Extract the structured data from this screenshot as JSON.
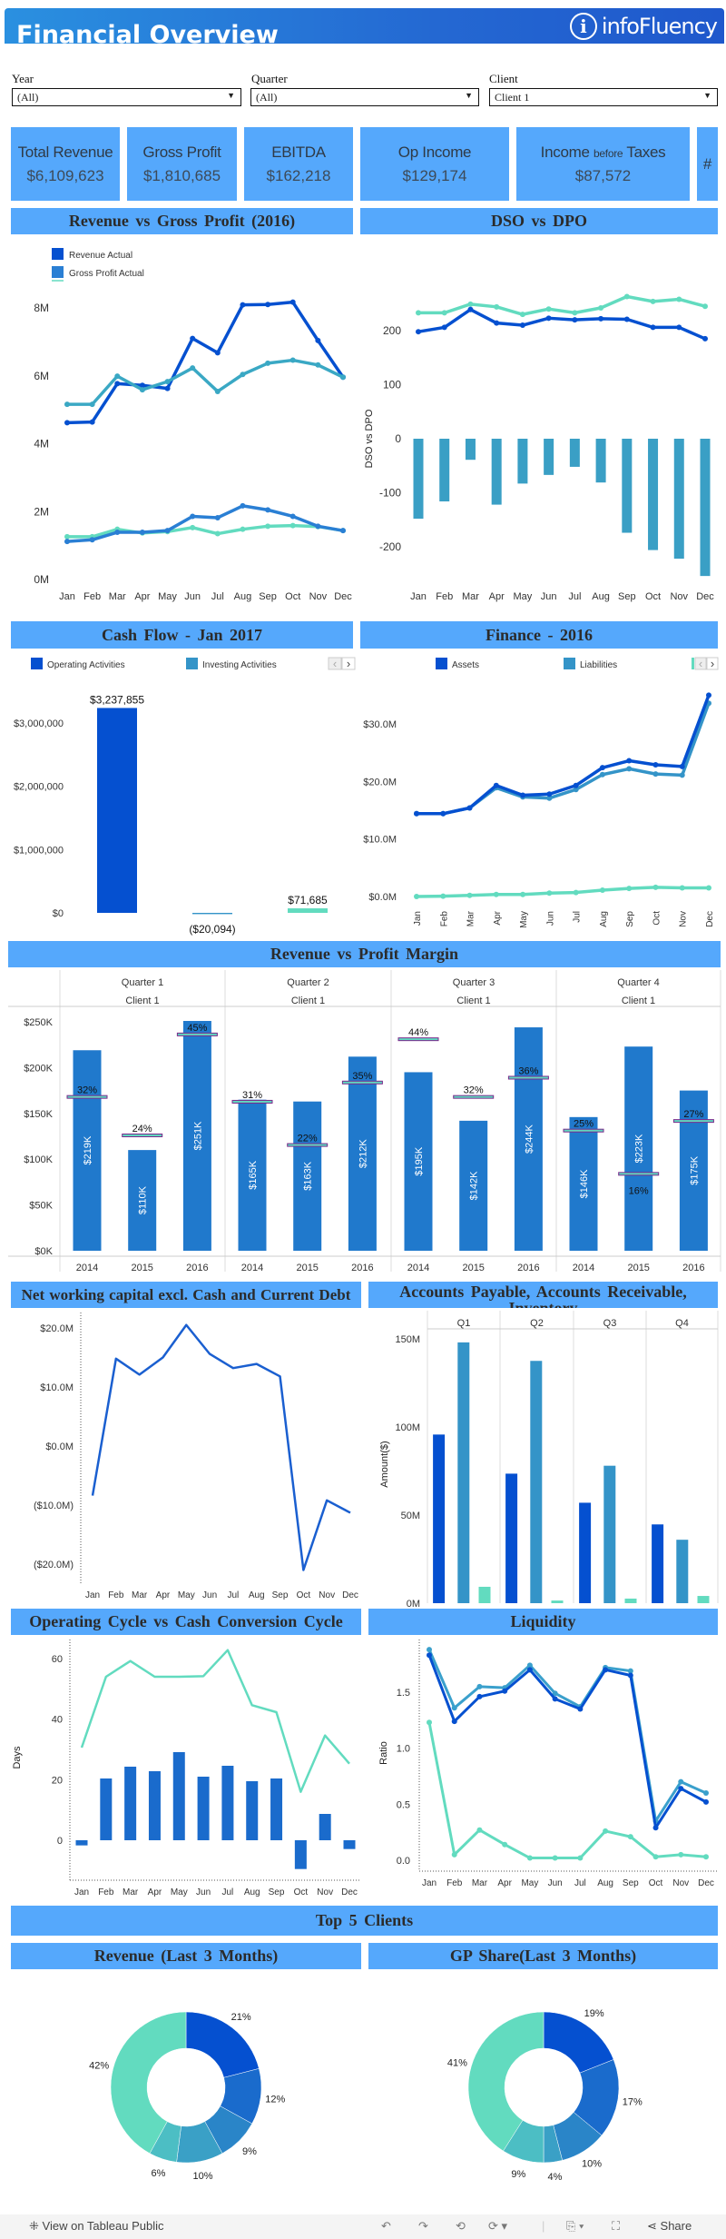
{
  "header": {
    "title": "Financial Overview",
    "logo_text": "infoFluency",
    "logo_mark": "i"
  },
  "filters": [
    {
      "label": "Year",
      "value": "(All)"
    },
    {
      "label": "Quarter",
      "value": "(All)"
    },
    {
      "label": "Client",
      "value": "Client 1"
    }
  ],
  "kpis": [
    {
      "label": "Total Revenue",
      "value": "$6,109,623"
    },
    {
      "label": "Gross Profit",
      "value": "$1,810,685"
    },
    {
      "label": "EBITDA",
      "value": "$162,218"
    },
    {
      "label": "Op Income",
      "value": "$129,174"
    },
    {
      "label_pre": "Income ",
      "label_small": "before",
      "label_post": " Taxes",
      "value": "$87,572"
    },
    {
      "label": "#"
    }
  ],
  "sections": {
    "revenue_vs_gp": "Revenue vs Gross Profit (2016)",
    "dso_vs_dpo": "DSO vs DPO",
    "cash_flow": "Cash Flow - Jan 2017",
    "finance": "Finance - 2016",
    "revenue_vs_margin": "Revenue vs Profit Margin",
    "nwc": "Net working capital excl. Cash and Current Debt",
    "ap_ar_inv": "Accounts Payable, Accounts Receivable, Inventory",
    "op_cycle": "Operating Cycle vs Cash Conversion Cycle",
    "liquidity": "Liquidity",
    "top5": "Top 5 Clients",
    "rev_3m": "Revenue (Last 3 Months)",
    "gp_3m": "GP Share(Last 3 Months)"
  },
  "colors": {
    "header_bg": "#55a8fc",
    "dark_blue": "#0550d0",
    "mid_blue": "#3494c8",
    "blue": "#2a7fd4",
    "teal": "#62dbbf",
    "teal_blue": "#3aa8c4",
    "margin_marker": "#7b2a8c"
  },
  "chart_data": [
    {
      "id": "revenue_vs_gp",
      "type": "line",
      "categories": [
        "Jan",
        "Feb",
        "Mar",
        "Apr",
        "May",
        "Jun",
        "Jul",
        "Aug",
        "Sep",
        "Oct",
        "Nov",
        "Dec"
      ],
      "legend": [
        {
          "name": "Revenue Actual",
          "color": "#0550d0"
        },
        {
          "name": "Gross Profit Actual",
          "color": "#2a7fd4"
        }
      ],
      "yticks": [
        {
          "value": 0,
          "label": "0M"
        },
        {
          "value": 2,
          "label": "2M"
        },
        {
          "value": 4,
          "label": "4M"
        },
        {
          "value": 6,
          "label": "6M"
        },
        {
          "value": 8,
          "label": "8M"
        }
      ],
      "series": [
        {
          "color": "#0550d0",
          "values": [
            4.62,
            4.64,
            5.77,
            5.72,
            5.63,
            7.1,
            6.68,
            8.09,
            8.1,
            8.17,
            7.04,
            5.96
          ]
        },
        {
          "color": "#3aa8c4",
          "values": [
            5.16,
            5.16,
            5.99,
            5.59,
            5.83,
            6.23,
            5.54,
            6.04,
            6.37,
            6.46,
            6.32,
            5.96
          ]
        },
        {
          "color": "#62dbbf",
          "values": [
            1.26,
            1.26,
            1.48,
            1.37,
            1.41,
            1.53,
            1.35,
            1.48,
            1.57,
            1.59,
            1.56,
            1.44
          ]
        },
        {
          "color": "#2a7fd4",
          "values": [
            1.12,
            1.17,
            1.39,
            1.39,
            1.44,
            1.86,
            1.82,
            2.17,
            2.05,
            1.86,
            1.57,
            1.44
          ]
        }
      ]
    },
    {
      "id": "dso_vs_dpo",
      "type": "combo",
      "categories": [
        "Jan",
        "Feb",
        "Mar",
        "Apr",
        "May",
        "Jun",
        "Jul",
        "Aug",
        "Sep",
        "Oct",
        "Nov",
        "Dec"
      ],
      "ylabel": "DSO vs DPO",
      "yticks": [
        {
          "value": -200,
          "label": "-200"
        },
        {
          "value": -100,
          "label": "-100"
        },
        {
          "value": 0,
          "label": "0"
        },
        {
          "value": 100,
          "label": "100"
        },
        {
          "value": 200,
          "label": "200"
        }
      ],
      "lines": [
        {
          "color": "#62dbbf",
          "values": [
            233,
            233,
            249,
            244,
            230,
            240,
            233,
            242,
            263,
            254,
            258,
            245
          ]
        },
        {
          "color": "#0550d0",
          "values": [
            198,
            206,
            239,
            214,
            210,
            223,
            220,
            222,
            221,
            206,
            206,
            185
          ]
        }
      ],
      "bars": {
        "color": "#3a9fc5",
        "values": [
          -148,
          -116,
          -39,
          -122,
          -83,
          -67,
          -52,
          -81,
          -174,
          -206,
          -222,
          -254
        ]
      }
    },
    {
      "id": "cash_flow",
      "type": "bar",
      "legend": [
        {
          "name": "Operating Activities",
          "color": "#0550d0"
        },
        {
          "name": "Investing Activities",
          "color": "#3494c8"
        }
      ],
      "values": [
        3237855,
        -20094,
        71685
      ],
      "colors": [
        "#0550d0",
        "#3494c8",
        "#62dbbf"
      ],
      "data_labels": [
        "$3,237,855",
        "($20,094)",
        "$71,685"
      ],
      "yticks": [
        {
          "value": 0,
          "label": "$0"
        },
        {
          "value": 1000000,
          "label": "$1,000,000"
        },
        {
          "value": 2000000,
          "label": "$2,000,000"
        },
        {
          "value": 3000000,
          "label": "$3,000,000"
        }
      ]
    },
    {
      "id": "finance",
      "type": "line",
      "categories": [
        "Jan",
        "Feb",
        "Mar",
        "Apr",
        "May",
        "Jun",
        "Jul",
        "Aug",
        "Sep",
        "Oct",
        "Nov",
        "Dec"
      ],
      "legend": [
        {
          "name": "Assets",
          "color": "#0550d0"
        },
        {
          "name": "Liabilities",
          "color": "#3494c8"
        }
      ],
      "yticks": [
        {
          "value": 0,
          "label": "$0.0M"
        },
        {
          "value": 10,
          "label": "$10.0M"
        },
        {
          "value": 20,
          "label": "$20.0M"
        },
        {
          "value": 30,
          "label": "$30.0M"
        }
      ],
      "series": [
        {
          "name": "Liabilities",
          "color": "#3494c8",
          "values": [
            14.4,
            14.4,
            15.4,
            18.9,
            17.3,
            17.1,
            18.6,
            21.2,
            22.2,
            21.3,
            21.1,
            33.6
          ]
        },
        {
          "name": "Assets",
          "color": "#0550d0",
          "values": [
            14.4,
            14.4,
            15.4,
            19.3,
            17.6,
            17.8,
            19.3,
            22.4,
            23.6,
            22.9,
            22.6,
            35.0
          ]
        },
        {
          "color": "#62dbbf",
          "values": [
            0.0,
            0.05,
            0.2,
            0.35,
            0.35,
            0.6,
            0.7,
            1.1,
            1.4,
            1.6,
            1.5,
            1.5
          ]
        }
      ]
    },
    {
      "id": "revenue_vs_margin",
      "type": "bar",
      "bar_color": "#2079cc",
      "yticks": [
        {
          "value": 0,
          "label": "$0K"
        },
        {
          "value": 50,
          "label": "$50K"
        },
        {
          "value": 100,
          "label": "$100K"
        },
        {
          "value": 150,
          "label": "$150K"
        },
        {
          "value": 200,
          "label": "$200K"
        },
        {
          "value": 250,
          "label": "$250K"
        }
      ],
      "panels": [
        {
          "quarter": "Quarter 1",
          "client": "Client 1",
          "years": [
            "2014",
            "2015",
            "2016"
          ],
          "revenue_k": [
            219,
            110,
            251
          ],
          "revenue_labels": [
            "$219K",
            "$110K",
            "$251K"
          ],
          "margin_pct": [
            32,
            24,
            45
          ],
          "margin_labels": [
            "32%",
            "24%",
            "45%"
          ]
        },
        {
          "quarter": "Quarter 2",
          "client": "Client 1",
          "years": [
            "2014",
            "2015",
            "2016"
          ],
          "revenue_k": [
            165,
            163,
            212
          ],
          "revenue_labels": [
            "$165K",
            "$163K",
            "$212K"
          ],
          "margin_pct": [
            31,
            22,
            35
          ],
          "margin_labels": [
            "31%",
            "22%",
            "35%"
          ]
        },
        {
          "quarter": "Quarter 3",
          "client": "Client 1",
          "years": [
            "2014",
            "2015",
            "2016"
          ],
          "revenue_k": [
            195,
            142,
            244
          ],
          "revenue_labels": [
            "$195K",
            "$142K",
            "$244K"
          ],
          "margin_pct": [
            44,
            32,
            36
          ],
          "margin_labels": [
            "44%",
            "32%",
            "36%"
          ]
        },
        {
          "quarter": "Quarter 4",
          "client": "Client 1",
          "years": [
            "2014",
            "2015",
            "2016"
          ],
          "revenue_k": [
            146,
            223,
            175
          ],
          "revenue_labels": [
            "$146K",
            "$223K",
            "$175K"
          ],
          "margin_pct": [
            25,
            16,
            27
          ],
          "margin_labels": [
            "25%",
            "16%",
            "27%"
          ]
        }
      ]
    },
    {
      "id": "nwc",
      "type": "line",
      "categories": [
        "Jan",
        "Feb",
        "Mar",
        "Apr",
        "May",
        "Jun",
        "Jul",
        "Aug",
        "Sep",
        "Oct",
        "Nov",
        "Dec"
      ],
      "yticks": [
        {
          "value": -20,
          "label": "($20.0M)"
        },
        {
          "value": -10,
          "label": "($10.0M)"
        },
        {
          "value": 0,
          "label": "$0.0M"
        },
        {
          "value": 10,
          "label": "$10.0M"
        },
        {
          "value": 20,
          "label": "$20.0M"
        }
      ],
      "series": [
        {
          "color": "#1a5fd0",
          "values": [
            -8.4,
            14.8,
            12.1,
            15.0,
            20.5,
            15.6,
            13.2,
            13.9,
            11.8,
            -21.0,
            -9.2,
            -11.3
          ]
        }
      ]
    },
    {
      "id": "ap_ar_inv",
      "type": "grouped_bar",
      "categories": [
        "Q1",
        "Q2",
        "Q3",
        "Q4"
      ],
      "ylabel": "Amount($)",
      "yticks": [
        {
          "value": 0,
          "label": "0M"
        },
        {
          "value": 50,
          "label": "50M"
        },
        {
          "value": 100,
          "label": "100M"
        },
        {
          "value": 150,
          "label": "150M"
        }
      ],
      "series": [
        {
          "color": "#0550d0",
          "values": [
            95.7,
            73.5,
            57,
            44.7
          ]
        },
        {
          "color": "#3494c8",
          "values": [
            148,
            137.5,
            78,
            36
          ]
        },
        {
          "color": "#62dbbf",
          "values": [
            9.3,
            1.5,
            2.6,
            4.1
          ]
        }
      ]
    },
    {
      "id": "op_cycle",
      "type": "combo",
      "categories": [
        "Jan",
        "Feb",
        "Mar",
        "Apr",
        "May",
        "Jun",
        "Jul",
        "Aug",
        "Sep",
        "Oct",
        "Nov",
        "Dec"
      ],
      "ylabel": "Days",
      "yticks": [
        {
          "value": 0,
          "label": "0"
        },
        {
          "value": 20,
          "label": "20"
        },
        {
          "value": 40,
          "label": "40"
        },
        {
          "value": 60,
          "label": "60"
        }
      ],
      "bars": {
        "color": "#1a6bcc",
        "values": [
          -1.7,
          20.4,
          24.3,
          22.8,
          29.1,
          21,
          24.6,
          19.5,
          20.4,
          -9.5,
          8.7,
          -2.9
        ]
      },
      "lines": [
        {
          "color": "#62dbbf",
          "values": [
            30.6,
            54,
            59.2,
            54,
            54,
            54.2,
            62.8,
            44.6,
            42.3,
            16,
            34.6,
            25.3
          ]
        }
      ]
    },
    {
      "id": "liquidity",
      "type": "line",
      "categories": [
        "Jan",
        "Feb",
        "Mar",
        "Apr",
        "May",
        "Jun",
        "Jul",
        "Aug",
        "Sep",
        "Oct",
        "Nov",
        "Dec"
      ],
      "ylabel": "Ratio",
      "yticks": [
        {
          "value": 0,
          "label": "0.0"
        },
        {
          "value": 0.5,
          "label": "0.5"
        },
        {
          "value": 1,
          "label": "1.0"
        },
        {
          "value": 1.5,
          "label": "1.5"
        }
      ],
      "series": [
        {
          "color": "#62dbbf",
          "values": [
            1.23,
            0.05,
            0.27,
            0.14,
            0.02,
            0.02,
            0.02,
            0.26,
            0.21,
            0.03,
            0.05,
            0.03
          ]
        },
        {
          "color": "#3aa0cc",
          "values": [
            1.88,
            1.36,
            1.55,
            1.54,
            1.74,
            1.49,
            1.37,
            1.72,
            1.69,
            0.35,
            0.7,
            0.6
          ]
        },
        {
          "color": "#0550d0",
          "values": [
            1.83,
            1.24,
            1.46,
            1.51,
            1.7,
            1.44,
            1.35,
            1.7,
            1.65,
            0.29,
            0.64,
            0.52
          ]
        }
      ]
    },
    {
      "id": "rev_3m",
      "type": "pie",
      "donut": true,
      "values": [
        21,
        12,
        9,
        10,
        6,
        42
      ],
      "labels": [
        "21%",
        "12%",
        "9%",
        "10%",
        "6%",
        "42%"
      ],
      "colors": [
        "#0550d0",
        "#1a6bcc",
        "#2a85c8",
        "#3aa0c6",
        "#4cbec4",
        "#62dbbf"
      ]
    },
    {
      "id": "gp_3m",
      "type": "pie",
      "donut": true,
      "values": [
        19,
        17,
        10,
        4,
        9,
        41
      ],
      "labels": [
        "19%",
        "17%",
        "10%",
        "4%",
        "9%",
        "41%"
      ],
      "colors": [
        "#0550d0",
        "#1a6bcc",
        "#2a85c8",
        "#3aa0c6",
        "#4cbec4",
        "#62dbbf"
      ]
    }
  ],
  "footer": {
    "view_label": "View on Tableau Public",
    "share_label": "Share"
  }
}
